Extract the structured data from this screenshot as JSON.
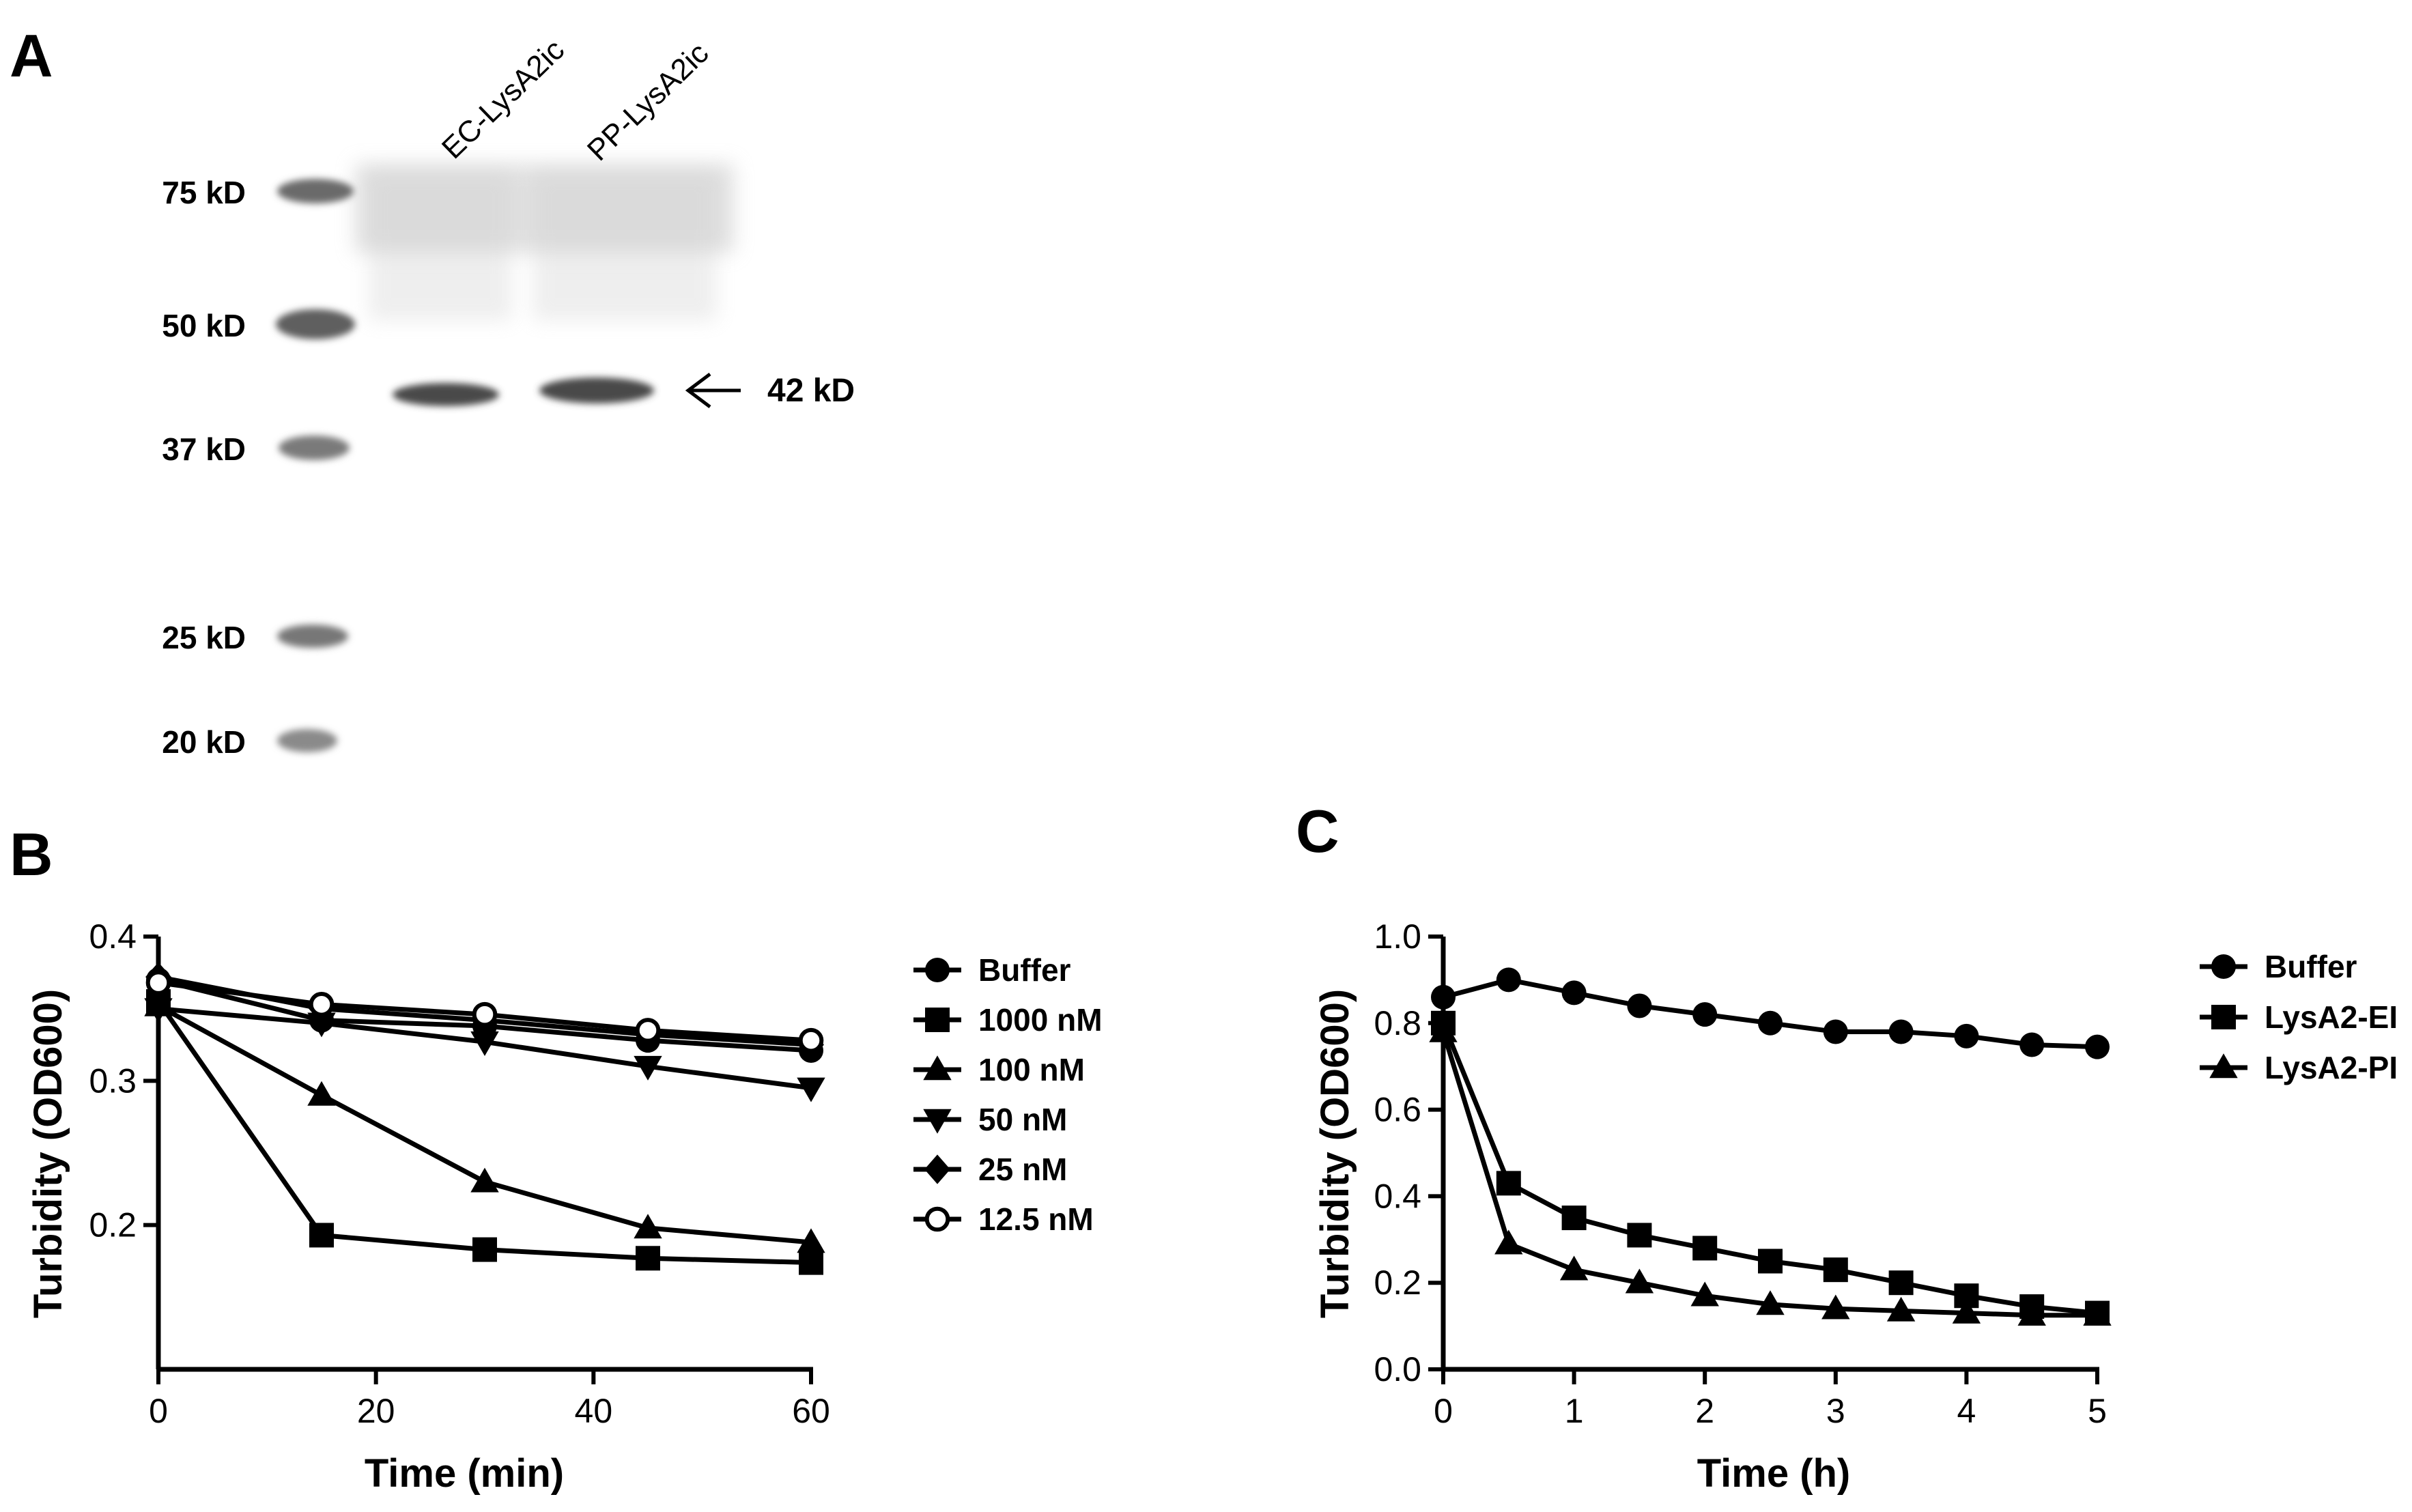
{
  "panel_a": {
    "letter": "A",
    "lanes": [
      "EC-LysA2ic",
      "PP-LysA2ic"
    ],
    "markers": [
      {
        "label": "75 kD",
        "kd": 75
      },
      {
        "label": "50 kD",
        "kd": 50
      },
      {
        "label": "37 kD",
        "kd": 37
      },
      {
        "label": "25 kD",
        "kd": 25
      },
      {
        "label": "20 kD",
        "kd": 20
      }
    ],
    "band_label": "42 kD"
  },
  "chart_data": [
    {
      "panel": "B",
      "type": "line",
      "title": "",
      "xlabel": "Time (min)",
      "ylabel": "Turbidity (OD600)",
      "xlim": [
        0,
        60
      ],
      "ylim": [
        0.1,
        0.4
      ],
      "xticks": [
        0,
        20,
        40,
        60
      ],
      "yticks": [
        0.2,
        0.3,
        0.4
      ],
      "xtick_labels": [
        "0",
        "20",
        "40",
        "60"
      ],
      "ytick_labels": [
        "0.2",
        "0.3",
        "0.4"
      ],
      "x": [
        0,
        15,
        30,
        45,
        60
      ],
      "legend_position": "right",
      "series": [
        {
          "name": "Buffer",
          "marker": "circle",
          "values": [
            0.37,
            0.342,
            0.338,
            0.328,
            0.321
          ]
        },
        {
          "name": "1000 nM",
          "marker": "square",
          "values": [
            0.355,
            0.193,
            0.183,
            0.177,
            0.174
          ]
        },
        {
          "name": "100 nM",
          "marker": "triangle-up",
          "values": [
            0.352,
            0.29,
            0.23,
            0.198,
            0.188
          ]
        },
        {
          "name": "50 nM",
          "marker": "triangle-down",
          "values": [
            0.35,
            0.34,
            0.327,
            0.31,
            0.295
          ]
        },
        {
          "name": "25 nM",
          "marker": "diamond",
          "values": [
            0.372,
            0.35,
            0.342,
            0.332,
            0.325
          ]
        },
        {
          "name": "12.5 nM",
          "marker": "circle-open",
          "values": [
            0.368,
            0.353,
            0.346,
            0.335,
            0.328
          ]
        }
      ]
    },
    {
      "panel": "C",
      "type": "line",
      "title": "",
      "xlabel": "Time (h)",
      "ylabel": "Turbidity (OD600)",
      "xlim": [
        0,
        5
      ],
      "ylim": [
        0.0,
        1.0
      ],
      "xticks": [
        0,
        1,
        2,
        3,
        4,
        5
      ],
      "yticks": [
        0.0,
        0.2,
        0.4,
        0.6,
        0.8,
        1.0
      ],
      "xtick_labels": [
        "0",
        "1",
        "2",
        "3",
        "4",
        "5"
      ],
      "ytick_labels": [
        "0.0",
        "0.2",
        "0.4",
        "0.6",
        "0.8",
        "1.0"
      ],
      "x": [
        0,
        0.5,
        1,
        1.5,
        2,
        2.5,
        3,
        3.5,
        4,
        4.5,
        5
      ],
      "legend_position": "right",
      "series": [
        {
          "name": "Buffer",
          "marker": "circle",
          "values": [
            0.86,
            0.9,
            0.87,
            0.84,
            0.82,
            0.8,
            0.78,
            0.78,
            0.77,
            0.75,
            0.745
          ]
        },
        {
          "name": "LysA2-EI",
          "marker": "square",
          "values": [
            0.8,
            0.43,
            0.35,
            0.31,
            0.28,
            0.25,
            0.23,
            0.2,
            0.17,
            0.145,
            0.13
          ]
        },
        {
          "name": "LysA2-PI",
          "marker": "triangle-up",
          "values": [
            0.78,
            0.29,
            0.23,
            0.2,
            0.17,
            0.15,
            0.14,
            0.135,
            0.13,
            0.125,
            0.125
          ]
        }
      ]
    }
  ]
}
